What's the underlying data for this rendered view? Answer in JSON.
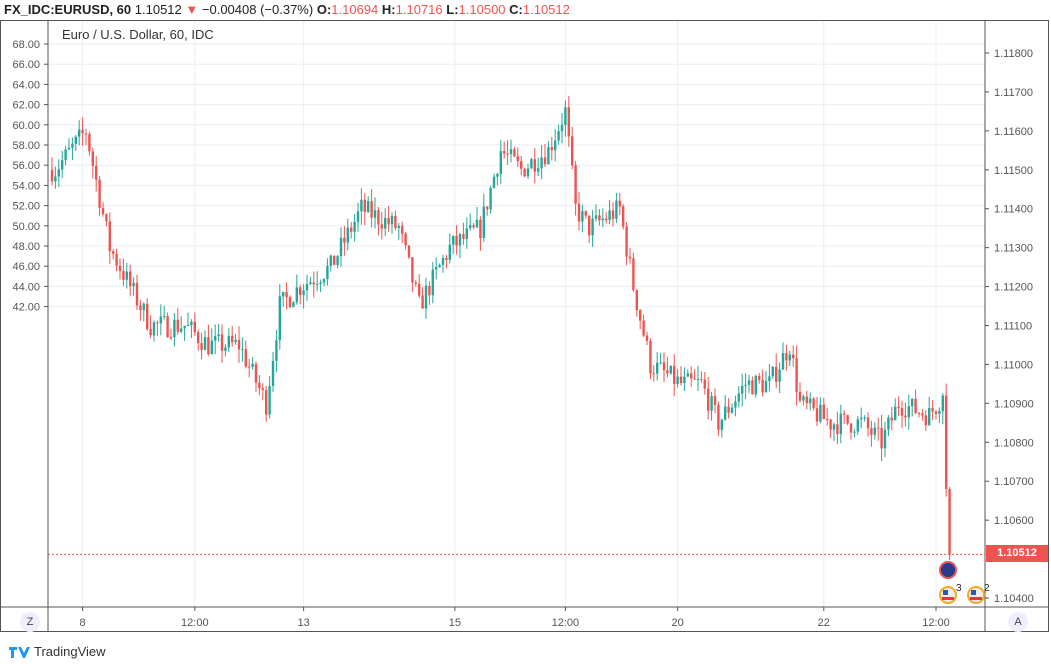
{
  "header": {
    "symbol": "FX_IDC:EURUSD, 60",
    "last": "1.10512",
    "arrow": "▼",
    "change": "−0.00408 (−0.37%)",
    "o_label": "O:",
    "o": "1.10694",
    "h_label": "H:",
    "h": "1.10716",
    "l_label": "L:",
    "l": "1.10500",
    "c_label": "C:",
    "c": "1.10512"
  },
  "chart_title": "Euro / U.S. Dollar, 60, IDC",
  "current_price_label": "1.10512",
  "buttons": {
    "z": "Z",
    "a": "A"
  },
  "footer": {
    "brand": "TradingView"
  },
  "events": [
    {
      "type": "eu-flag",
      "count": ""
    },
    {
      "type": "us-flag",
      "count": "3"
    },
    {
      "type": "us-flag",
      "count": "2"
    }
  ],
  "colors": {
    "up": "#26a69a",
    "down": "#ef5350",
    "grid": "#e8eef3"
  },
  "chart_data": {
    "type": "candlestick",
    "title": "Euro / U.S. Dollar, 60, IDC",
    "left_axis": {
      "labels": [
        "68.00",
        "66.00",
        "64.00",
        "62.00",
        "60.00",
        "58.00",
        "56.00",
        "54.00",
        "52.00",
        "50.00",
        "48.00",
        "46.00",
        "44.00",
        "42.00"
      ],
      "range": [
        41.7,
        69.2
      ]
    },
    "right_axis": {
      "labels": [
        "1.11800",
        "1.11700",
        "1.11600",
        "1.11500",
        "1.11400",
        "1.11300",
        "1.11200",
        "1.11100",
        "1.11000",
        "1.10900",
        "1.10800",
        "1.10700",
        "1.10600",
        "1.10400"
      ],
      "values": [
        1.118,
        1.117,
        1.116,
        1.115,
        1.114,
        1.113,
        1.112,
        1.111,
        1.11,
        1.109,
        1.108,
        1.107,
        1.106,
        1.104
      ],
      "range": [
        1.10388,
        1.11862
      ]
    },
    "x_axis": {
      "labels": [
        "8",
        "12:00",
        "13",
        "15",
        "12:00",
        "20",
        "22",
        "12:00"
      ],
      "bar_index": [
        9,
        42,
        74,
        118.5,
        151,
        184,
        227,
        260
      ],
      "bars": 265
    },
    "close_path": [
      [
        0,
        1.115
      ],
      [
        1,
        1.115
      ],
      [
        10,
        1.116
      ],
      [
        17,
        1.113
      ],
      [
        23,
        1.112
      ],
      [
        29,
        1.111
      ],
      [
        39,
        1.111
      ],
      [
        46,
        1.1105
      ],
      [
        55,
        1.1105
      ],
      [
        63,
        1.109
      ],
      [
        67,
        1.1115
      ],
      [
        73,
        1.112
      ],
      [
        82,
        1.1125
      ],
      [
        91,
        1.114
      ],
      [
        102,
        1.1135
      ],
      [
        108,
        1.1115
      ],
      [
        117,
        1.113
      ],
      [
        126,
        1.1135
      ],
      [
        132,
        1.1155
      ],
      [
        138,
        1.115
      ],
      [
        146,
        1.1155
      ],
      [
        151,
        1.1165
      ],
      [
        154,
        1.114
      ],
      [
        158,
        1.1135
      ],
      [
        167,
        1.114
      ],
      [
        171,
        1.112
      ],
      [
        176,
        1.11
      ],
      [
        185,
        1.1095
      ],
      [
        191,
        1.1095
      ],
      [
        196,
        1.1085
      ],
      [
        204,
        1.1095
      ],
      [
        211,
        1.1095
      ],
      [
        217,
        1.1105
      ],
      [
        220,
        1.109
      ],
      [
        229,
        1.1085
      ],
      [
        238,
        1.1085
      ],
      [
        244,
        1.108
      ],
      [
        249,
        1.109
      ],
      [
        258,
        1.1087
      ],
      [
        262,
        1.1092
      ],
      [
        263,
        1.1068
      ],
      [
        264,
        1.10512
      ]
    ],
    "last_price": 1.10512
  }
}
